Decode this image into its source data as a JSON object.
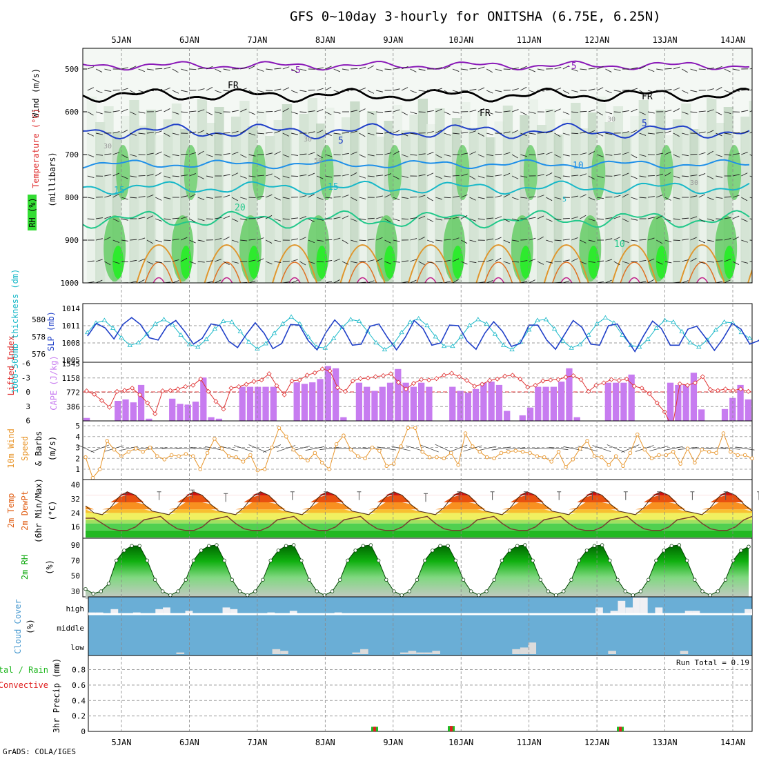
{
  "title": "GFS 0~10day 3-hourly for ONITSHA (6.75E, 6.25N)",
  "credit": "GrADS: COLA/IGES",
  "dates": [
    "5JAN",
    "6JAN",
    "7JAN",
    "8JAN",
    "9JAN",
    "10JAN",
    "11JAN",
    "12JAN",
    "13JAN",
    "14JAN"
  ],
  "colors": {
    "cape": "#c77cf0",
    "lifted": "#e03434",
    "slp": "#1f3fc8",
    "thickness": "#18b8c8",
    "wind10": "#e8962c",
    "temp": "#e06018",
    "cloud": "#6aaed6",
    "cloud_light": "#f0f0f4",
    "precip_green": "#22b822",
    "precip_red": "#e02020",
    "rh_green": "#11aa11",
    "purple_iso": "#8a1ab8",
    "blue_iso": "#1f3fc8",
    "teal_iso": "#18b8c8",
    "green_iso": "#22c88a",
    "orange_iso": "#e0962c"
  },
  "panels": {
    "upper": {
      "ylabel_wind": "Wind (m/s)",
      "ylabel_temp": "Temperature (°C)",
      "ylabel_rh": "RH (%)",
      "ylabel_p": "(millibars)",
      "pressure_ticks": [
        "500",
        "600",
        "700",
        "800",
        "900",
        "1000"
      ],
      "isotherm_labels": [
        "-5",
        "-5",
        "FR",
        "FR",
        "FR",
        "5",
        "5",
        "10",
        "10",
        "15",
        "15",
        "20",
        "5",
        "30",
        "30",
        "30",
        "50",
        "30"
      ]
    },
    "slp": {
      "ylabel_thick": "1000-500mb thickness (dm)",
      "ylabel_slp": "SLP (mb)",
      "thick_ticks": [
        "580",
        "578",
        "576"
      ],
      "slp_ticks": [
        "1014",
        "1011",
        "1008",
        "1005"
      ]
    },
    "cape": {
      "ylabel_li": "Lifted Index",
      "ylabel_cape": "CAPE (J/kg)",
      "li_ticks": [
        "-6",
        "-3",
        "0",
        "3",
        "6"
      ],
      "cape_ticks": [
        "1545",
        "1158",
        "772",
        "386"
      ]
    },
    "wind10": {
      "ylabel_a": "10m Wind",
      "ylabel_b": "Speed",
      "ylabel_c": "& Barbs",
      "ylabel_d": "(m/s)",
      "ticks": [
        "5",
        "4",
        "3",
        "2",
        "1"
      ]
    },
    "temp2m": {
      "ylabel_a": "2m Temp",
      "ylabel_b": "2m DewPt",
      "ylabel_c": "(6hr Min/Max)",
      "ylabel_d": "(°C)",
      "ticks": [
        "40",
        "32",
        "24",
        "16"
      ]
    },
    "rh2m": {
      "ylabel_a": "2m RH",
      "ylabel_b": "(%)",
      "ticks": [
        "90",
        "70",
        "50",
        "30"
      ]
    },
    "cloud": {
      "ylabel_a": "Cloud Cover",
      "ylabel_b": "(%)",
      "levels": [
        "high",
        "middle",
        "low"
      ]
    },
    "precip": {
      "ylabel_a": "Total / Rain",
      "ylabel_b": "Convective",
      "ylabel_c": "3hr Precip (mm)",
      "ticks": [
        "0.8",
        "0.6",
        "0.4",
        "0.2",
        "0"
      ],
      "run_total": "Run Total = 0.19"
    }
  },
  "chart_data": [
    {
      "type": "line",
      "name": "slp_thickness",
      "x_unit": "3-hourly steps from 4JAN 12Z",
      "series": [
        {
          "name": "SLP (mb)",
          "values": [
            1009.2,
            1011.4,
            1010.6,
            1008.7,
            1011.2,
            1012.4,
            1011.2,
            1008.9,
            1008.5,
            1010.9,
            1011.9,
            1010.0,
            1007.8,
            1008.8,
            1011.3,
            1011.0,
            1008.3,
            1007.2,
            1009.5,
            1011.5,
            1009.7,
            1007.0,
            1007.9,
            1011.2,
            1011.1,
            1008.4,
            1006.8,
            1009.8,
            1012.0,
            1010.4,
            1007.6,
            1007.8,
            1010.9,
            1011.3,
            1008.9,
            1006.8,
            1009.0,
            1011.9,
            1010.5,
            1007.6,
            1008.0,
            1011.1,
            1011.0,
            1008.3,
            1006.9,
            1009.7,
            1011.7,
            1010.0,
            1007.4,
            1007.9,
            1011.1,
            1011.1,
            1008.5,
            1006.9,
            1009.4,
            1011.9,
            1010.7,
            1007.8,
            1007.6,
            1011.0,
            1011.3,
            1008.8,
            1006.5,
            1009.3,
            1011.8,
            1010.5,
            1007.6,
            1007.6,
            1010.4,
            1010.9,
            1008.9,
            1006.7,
            1008.8,
            1011.4,
            1010.4,
            1007.8,
            1008.4,
            1010.1,
            1009.8
          ]
        },
        {
          "name": "1000-500mb thickness (dm)",
          "values": [
            578.5,
            579.6,
            579.9,
            579.0,
            577.9,
            577.0,
            577.3,
            578.3,
            579.5,
            580.0,
            579.4,
            578.2,
            577.1,
            576.8,
            577.7,
            578.9,
            579.8,
            579.7,
            578.6,
            577.4,
            576.6,
            577.2,
            578.4,
            579.5,
            580.3,
            579.5,
            578.0,
            576.8,
            576.7,
            577.8,
            579.1,
            580.0,
            579.8,
            578.6,
            577.3,
            576.5,
            577.1,
            578.5,
            579.7,
            580.1,
            579.3,
            578.0,
            576.9,
            576.9,
            578.0,
            579.3,
            580.0,
            579.5,
            578.3,
            577.0,
            576.5,
            577.4,
            578.8,
            579.9,
            580.0,
            578.9,
            577.5,
            576.7,
            577.1,
            578.2,
            579.5,
            580.2,
            579.6,
            578.2,
            577.0,
            576.8,
            577.7,
            579.0,
            579.9,
            579.7,
            578.6,
            577.3,
            576.8,
            577.6,
            578.8,
            579.7,
            579.6,
            578.5,
            577.8
          ]
        }
      ]
    },
    {
      "type": "bar",
      "name": "cape_lifted_index",
      "series": [
        {
          "name": "CAPE (J/kg)",
          "values": [
            80,
            0,
            0,
            0,
            540,
            580,
            500,
            970,
            60,
            0,
            0,
            600,
            460,
            440,
            520,
            1170,
            100,
            60,
            0,
            0,
            920,
            920,
            920,
            920,
            920,
            0,
            0,
            1040,
            1000,
            1040,
            1130,
            1480,
            1420,
            100,
            0,
            1030,
            920,
            810,
            920,
            1030,
            1400,
            1030,
            920,
            1030,
            920,
            0,
            0,
            920,
            810,
            760,
            860,
            1030,
            1060,
            970,
            270,
            0,
            150,
            360,
            920,
            920,
            920,
            1060,
            1420,
            100,
            0,
            0,
            0,
            1030,
            1030,
            1030,
            1250,
            0,
            0,
            0,
            0,
            1030,
            970,
            980,
            1300,
            310,
            0,
            0,
            320,
            620,
            970,
            580
          ]
        },
        {
          "name": "Lifted Index",
          "values": [
            -0.2,
            0.5,
            1.8,
            3.2,
            -0.1,
            -0.3,
            -0.8,
            0.6,
            2.3,
            4.6,
            -0.2,
            -0.3,
            -0.6,
            -1.1,
            -1.4,
            -2.7,
            -0.1,
            2.0,
            3.6,
            -0.8,
            -1.1,
            -1.6,
            -2.2,
            -2.5,
            -3.8,
            -1.3,
            0.6,
            -2.3,
            -2.5,
            -3.5,
            -4.0,
            -4.8,
            -4.4,
            -0.9,
            -0.1,
            -2.3,
            -2.8,
            -2.9,
            -3.2,
            -3.4,
            -3.8,
            -2.0,
            -0.6,
            -1.8,
            -2.6,
            -2.5,
            -2.8,
            -3.5,
            -3.9,
            -3.2,
            -2.4,
            -1.2,
            -1.6,
            -2.4,
            -2.7,
            -3.3,
            -3.5,
            -2.7,
            -1.0,
            -1.4,
            -2.3,
            -2.5,
            -2.6,
            -3.1,
            -3.4,
            -2.6,
            -0.1,
            -1.4,
            -1.9,
            -2.6,
            -2.4,
            -2.7,
            -1.2,
            -0.8,
            0.4,
            2.3,
            4.2,
            7.5,
            -1.7,
            -1.4,
            -1.9,
            -3.2,
            -0.5,
            -0.3,
            -0.6,
            -0.3,
            -0.6,
            -0.1
          ]
        }
      ]
    },
    {
      "type": "line",
      "name": "wind10_speed",
      "series": [
        {
          "name": "10m Wind Speed (m/s)",
          "values": [
            2.1,
            0.2,
            1.0,
            3.6,
            2.8,
            2.2,
            2.6,
            2.9,
            2.6,
            3.0,
            2.2,
            1.9,
            2.3,
            2.2,
            2.4,
            2.2,
            1.0,
            2.5,
            3.8,
            2.9,
            2.2,
            2.1,
            1.7,
            2.3,
            0.9,
            1.0,
            3.0,
            4.8,
            4.0,
            2.8,
            2.1,
            1.8,
            2.5,
            1.6,
            1.0,
            3.3,
            4.1,
            2.8,
            2.2,
            2.0,
            3.0,
            2.7,
            1.3,
            1.5,
            3.1,
            4.8,
            4.8,
            2.6,
            2.1,
            2.1,
            2.0,
            2.5,
            1.4,
            4.3,
            3.1,
            2.6,
            2.1,
            2.0,
            2.5,
            2.6,
            2.7,
            2.6,
            2.5,
            2.2,
            2.1,
            1.7,
            2.6,
            1.2,
            1.9,
            2.9,
            3.6,
            2.2,
            2.1,
            1.4,
            2.2,
            1.3,
            2.5,
            4.2,
            2.8,
            2.0,
            2.3,
            2.3,
            2.6,
            1.5,
            2.9,
            1.6,
            2.8,
            2.6,
            2.5,
            4.3,
            2.6,
            2.3,
            2.3,
            2.0
          ]
        }
      ]
    },
    {
      "type": "area",
      "name": "temp2m_dewpoint",
      "series": [
        {
          "name": "2m Temp (°C)",
          "values": [
            28,
            24,
            23,
            27,
            33,
            36,
            34,
            29,
            25,
            24,
            23,
            27,
            33,
            36,
            34,
            29,
            25,
            24,
            23,
            27,
            33,
            36,
            34,
            29,
            25,
            24,
            23,
            27,
            33,
            36,
            34,
            29,
            25,
            24,
            23,
            27,
            33,
            36,
            34,
            29,
            25,
            24,
            23,
            27,
            33,
            36,
            34,
            29,
            25,
            24,
            23,
            27,
            33,
            36,
            34,
            29,
            25,
            24,
            23,
            27,
            33,
            36,
            34,
            29,
            25,
            24,
            23,
            27,
            33,
            36,
            34,
            29,
            25,
            24,
            23,
            27,
            33,
            36,
            34,
            29,
            25
          ]
        },
        {
          "name": "2m DewPt (°C)",
          "values": [
            21,
            21,
            18,
            15,
            14,
            14,
            16,
            20,
            21,
            22,
            18,
            15,
            14,
            14,
            16,
            20,
            21,
            22,
            18,
            15,
            14,
            14,
            16,
            20,
            21,
            22,
            18,
            15,
            14,
            14,
            16,
            20,
            21,
            22,
            18,
            15,
            14,
            14,
            16,
            20,
            21,
            22,
            18,
            15,
            14,
            14,
            16,
            20,
            21,
            22,
            18,
            15,
            14,
            14,
            16,
            20,
            21,
            22,
            18,
            15,
            14,
            14,
            16,
            20,
            21,
            22,
            18,
            15,
            14,
            14,
            16,
            20,
            21,
            22,
            18,
            15,
            14,
            14,
            16,
            20,
            22
          ]
        },
        {
          "name": "6hr Max (°C)",
          "values": [
            null,
            35,
            36,
            37,
            35,
            35,
            36,
            36,
            36,
            35,
            35,
            36,
            36,
            36,
            36,
            36,
            36,
            36,
            36,
            36,
            36
          ]
        }
      ]
    },
    {
      "type": "area",
      "name": "rh2m",
      "series": [
        {
          "name": "2m RH (%)",
          "values": [
            33,
            27,
            30,
            40,
            70,
            83,
            89,
            89,
            70,
            45,
            30,
            25,
            30,
            45,
            70,
            83,
            89,
            90,
            70,
            45,
            30,
            25,
            30,
            45,
            70,
            83,
            89,
            90,
            70,
            45,
            30,
            25,
            30,
            45,
            70,
            83,
            89,
            90,
            70,
            45,
            30,
            25,
            30,
            45,
            70,
            83,
            89,
            89,
            70,
            45,
            30,
            25,
            30,
            45,
            70,
            83,
            89,
            90,
            70,
            45,
            30,
            25,
            30,
            45,
            70,
            83,
            89,
            90,
            70,
            45,
            30,
            25,
            30,
            45,
            70,
            83,
            89,
            90,
            70,
            45,
            30,
            25,
            30,
            45,
            70,
            83,
            88
          ]
        }
      ]
    },
    {
      "type": "bar",
      "name": "cloud_cover",
      "series": [
        {
          "name": "high",
          "values": [
            10,
            10,
            0,
            30,
            0,
            0,
            10,
            0,
            0,
            30,
            40,
            0,
            0,
            20,
            0,
            0,
            0,
            0,
            40,
            30,
            0,
            0,
            0,
            0,
            10,
            0,
            0,
            20,
            0,
            0,
            0,
            0,
            0,
            10,
            0,
            0,
            0,
            0,
            0,
            0,
            0,
            0,
            0,
            0,
            0,
            0,
            0,
            0,
            0,
            0,
            0,
            0,
            0,
            0,
            0,
            0,
            0,
            0,
            0,
            0,
            0,
            0,
            0,
            0,
            0,
            0,
            0,
            0,
            40,
            0,
            20,
            80,
            40,
            100,
            100,
            0,
            40,
            0,
            0,
            0,
            20,
            20,
            0,
            0,
            0,
            0,
            0,
            0,
            30
          ]
        },
        {
          "name": "low",
          "values": [
            0,
            0,
            0,
            0,
            0,
            0,
            0,
            0,
            0,
            0,
            0,
            10,
            0,
            0,
            0,
            0,
            0,
            0,
            0,
            0,
            0,
            0,
            0,
            30,
            20,
            0,
            0,
            0,
            0,
            0,
            0,
            0,
            0,
            10,
            30,
            0,
            0,
            0,
            0,
            10,
            20,
            10,
            10,
            20,
            0,
            0,
            0,
            0,
            0,
            0,
            0,
            0,
            0,
            30,
            40,
            70,
            0,
            0,
            0,
            0,
            0,
            0,
            0,
            0,
            0,
            20,
            0,
            0,
            0,
            0,
            0,
            0,
            0,
            0,
            20,
            0,
            0,
            0,
            0,
            0,
            0,
            0,
            0
          ]
        }
      ]
    },
    {
      "type": "bar",
      "name": "precip_3hr",
      "categories": [
        "8JAN 18Z",
        "9JAN 21Z",
        "12JAN 09Z"
      ],
      "series": [
        {
          "name": "Total (mm)",
          "values": [
            0.06,
            0.07,
            0.06
          ]
        },
        {
          "name": "Convective (mm)",
          "values": [
            0.06,
            0.07,
            0.06
          ]
        }
      ],
      "ylim": [
        0,
        0.95
      ]
    }
  ]
}
